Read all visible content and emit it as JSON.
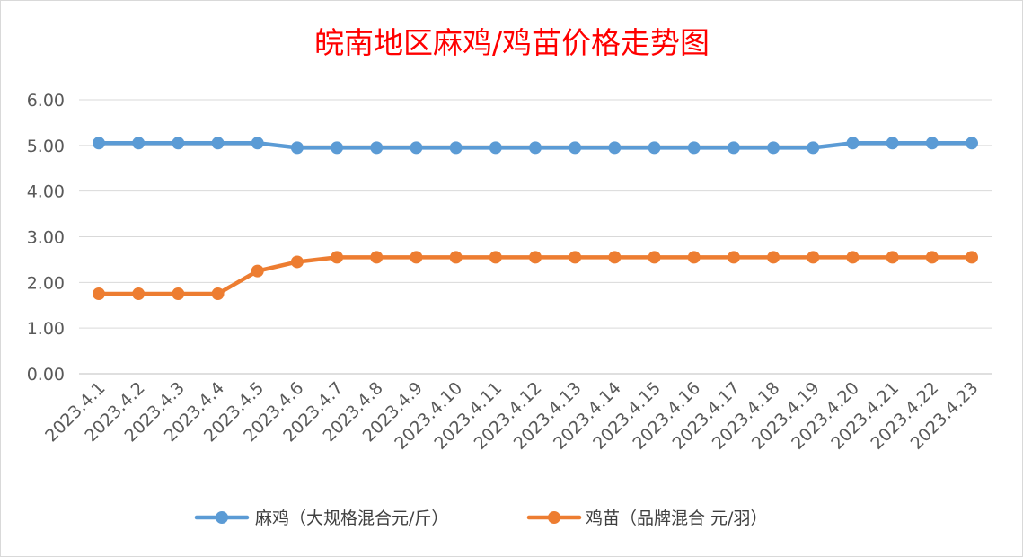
{
  "chart_data": {
    "type": "line",
    "title": "皖南地区麻鸡/鸡苗价格走势图",
    "categories": [
      "2023.4.1",
      "2023.4.2",
      "2023.4.3",
      "2023.4.4",
      "2023.4.5",
      "2023.4.6",
      "2023.4.7",
      "2023.4.8",
      "2023.4.9",
      "2023.4.10",
      "2023.4.11",
      "2023.4.12",
      "2023.4.13",
      "2023.4.14",
      "2023.4.15",
      "2023.4.16",
      "2023.4.17",
      "2023.4.18",
      "2023.4.19",
      "2023.4.20",
      "2023.4.21",
      "2023.4.22",
      "2023.4.23"
    ],
    "y_ticks": [
      "0.00",
      "1.00",
      "2.00",
      "3.00",
      "4.00",
      "5.00",
      "6.00"
    ],
    "ylim": [
      0,
      6
    ],
    "grid": true,
    "legend_position": "bottom",
    "series": [
      {
        "name": "麻鸡（大规格混合元/斤）",
        "color": "#5b9bd5",
        "values": [
          5.05,
          5.05,
          5.05,
          5.05,
          5.05,
          4.95,
          4.95,
          4.95,
          4.95,
          4.95,
          4.95,
          4.95,
          4.95,
          4.95,
          4.95,
          4.95,
          4.95,
          4.95,
          4.95,
          5.05,
          5.05,
          5.05,
          5.05
        ]
      },
      {
        "name": "鸡苗（品牌混合 元/羽）",
        "color": "#ed7d31",
        "values": [
          1.75,
          1.75,
          1.75,
          1.75,
          2.25,
          2.45,
          2.55,
          2.55,
          2.55,
          2.55,
          2.55,
          2.55,
          2.55,
          2.55,
          2.55,
          2.55,
          2.55,
          2.55,
          2.55,
          2.55,
          2.55,
          2.55,
          2.55
        ]
      }
    ]
  }
}
